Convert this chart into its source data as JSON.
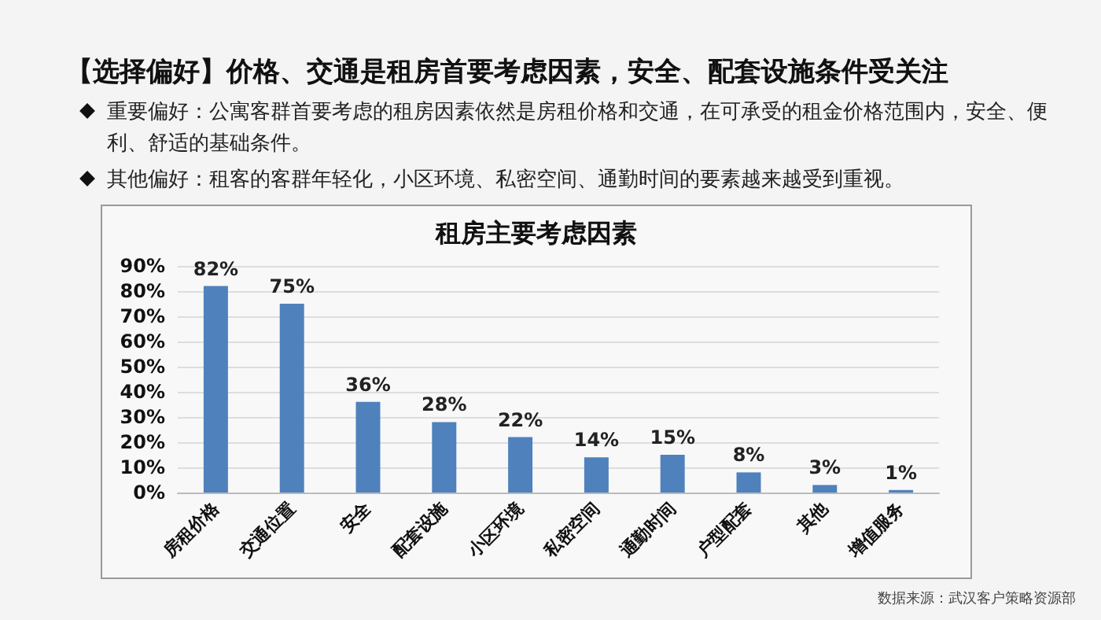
{
  "chart_data": {
    "type": "bar",
    "title": "【选择偏好】价格、交通是租房首要考虑因素，安全、配套设施条件受关注",
    "subtitle": "租房主要考虑因素",
    "annotations": [
      "重要偏好：公寓客群首要考虑的租房因素依然是房租价格和交通，在可承受的租金价格范围内，安全、便利、舒适的基础条件。",
      "其他偏好：租客的客群年轻化，小区环境、私密空间、通勤时间的要素越来越受到重视。",
      "数据来源：武汉客户策略资源部"
    ],
    "categories": [
      "房租价格",
      "交通位置",
      "安全",
      "配套设施",
      "小区环境",
      "私密空间",
      "通勤时间",
      "户型配套",
      "其他",
      "增值服务"
    ],
    "values": [
      82,
      75,
      36,
      28,
      22,
      14,
      15,
      8,
      3,
      1
    ],
    "value_labels": [
      "82%",
      "75%",
      "36%",
      "28%",
      "22%",
      "14%",
      "15%",
      "8%",
      "3%",
      "1%"
    ],
    "color": "#4f81bd",
    "ylim": [
      0,
      90
    ],
    "yticks": [
      {
        "value": 0,
        "label": "0%"
      },
      {
        "value": 10,
        "label": "10%"
      },
      {
        "value": 20,
        "label": "20%"
      },
      {
        "value": 30,
        "label": "30%"
      },
      {
        "value": 40,
        "label": "40%"
      },
      {
        "value": 50,
        "label": "50%"
      },
      {
        "value": 60,
        "label": "60%"
      },
      {
        "value": 70,
        "label": "70%"
      },
      {
        "value": 80,
        "label": "80%"
      },
      {
        "value": 90,
        "label": "90%"
      }
    ],
    "grid": "y"
  }
}
